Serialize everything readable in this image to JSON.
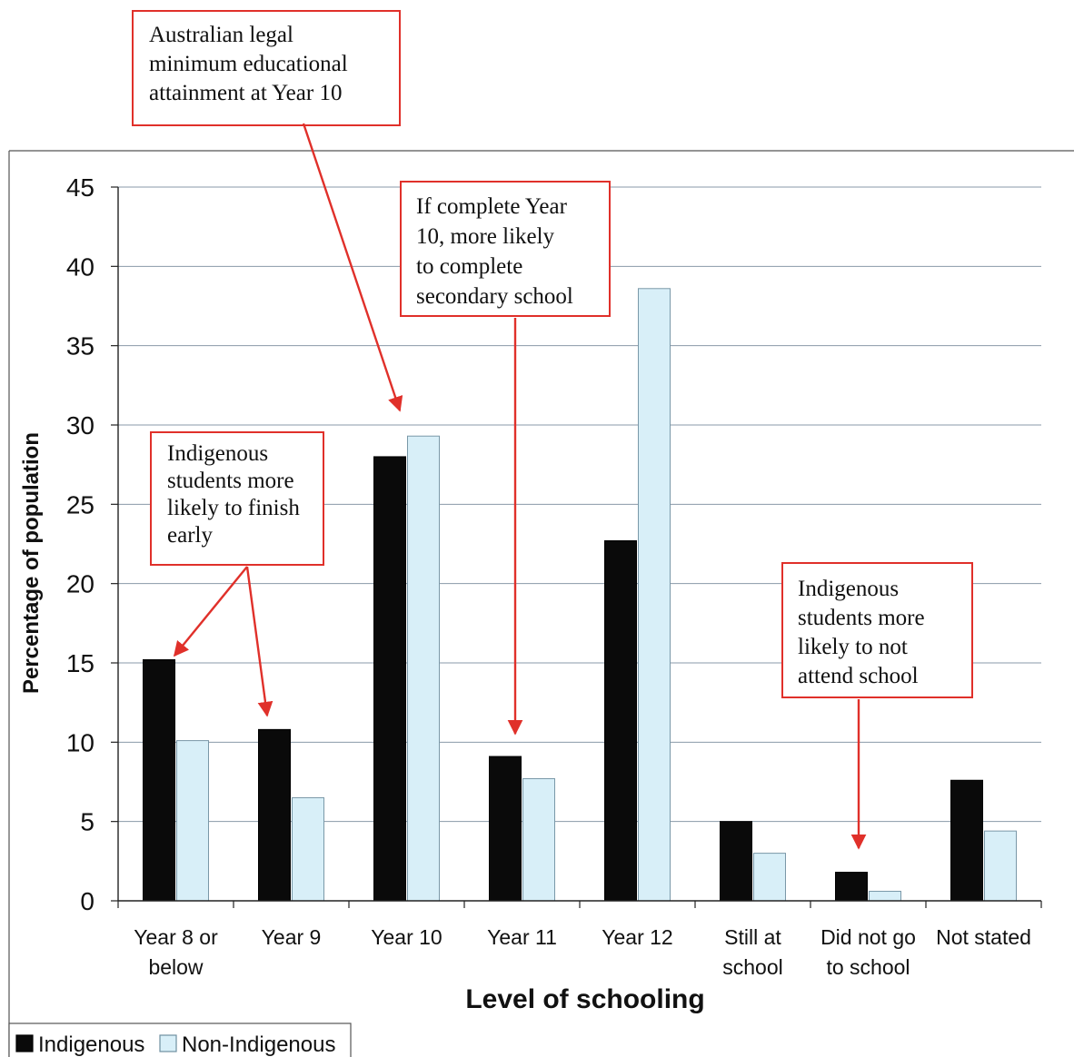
{
  "chart_data": {
    "type": "bar",
    "categories": [
      "Year 8 or below",
      "Year 9",
      "Year 10",
      "Year 11",
      "Year 12",
      "Still at school",
      "Did not go to school",
      "Not stated"
    ],
    "category_lines": [
      [
        "Year 8 or",
        "below"
      ],
      [
        "Year 9"
      ],
      [
        "Year 10"
      ],
      [
        "Year 11"
      ],
      [
        "Year 12"
      ],
      [
        "Still at",
        "school"
      ],
      [
        "Did not go",
        "to school"
      ],
      [
        "Not stated"
      ]
    ],
    "series": [
      {
        "name": "Indigenous",
        "color": "#0a0a0a",
        "values": [
          15.2,
          10.8,
          28.0,
          9.1,
          22.7,
          5.0,
          1.8,
          7.6
        ]
      },
      {
        "name": "Non-Indigenous",
        "color": "#d8eff8",
        "values": [
          10.1,
          6.5,
          29.3,
          7.7,
          38.6,
          3.0,
          0.6,
          4.4
        ]
      }
    ],
    "xlabel": "Level of schooling",
    "ylabel": "Percentage of population",
    "ylim": [
      0,
      45
    ],
    "yticks": [
      0,
      5,
      10,
      15,
      20,
      25,
      30,
      35,
      40,
      45
    ],
    "grid": true,
    "legend_position": "bottom-left",
    "annotations": [
      {
        "lines": [
          "Australian legal",
          "minimum educational",
          "attainment at Year 10"
        ]
      },
      {
        "lines": [
          "If complete Year",
          "10, more likely",
          "to complete",
          "secondary school"
        ]
      },
      {
        "lines": [
          "Indigenous",
          "students more",
          "likely to finish",
          "early"
        ]
      },
      {
        "lines": [
          "Indigenous",
          "students more",
          "likely to not",
          "attend school"
        ]
      }
    ],
    "annotation_color": "#e0302a"
  }
}
